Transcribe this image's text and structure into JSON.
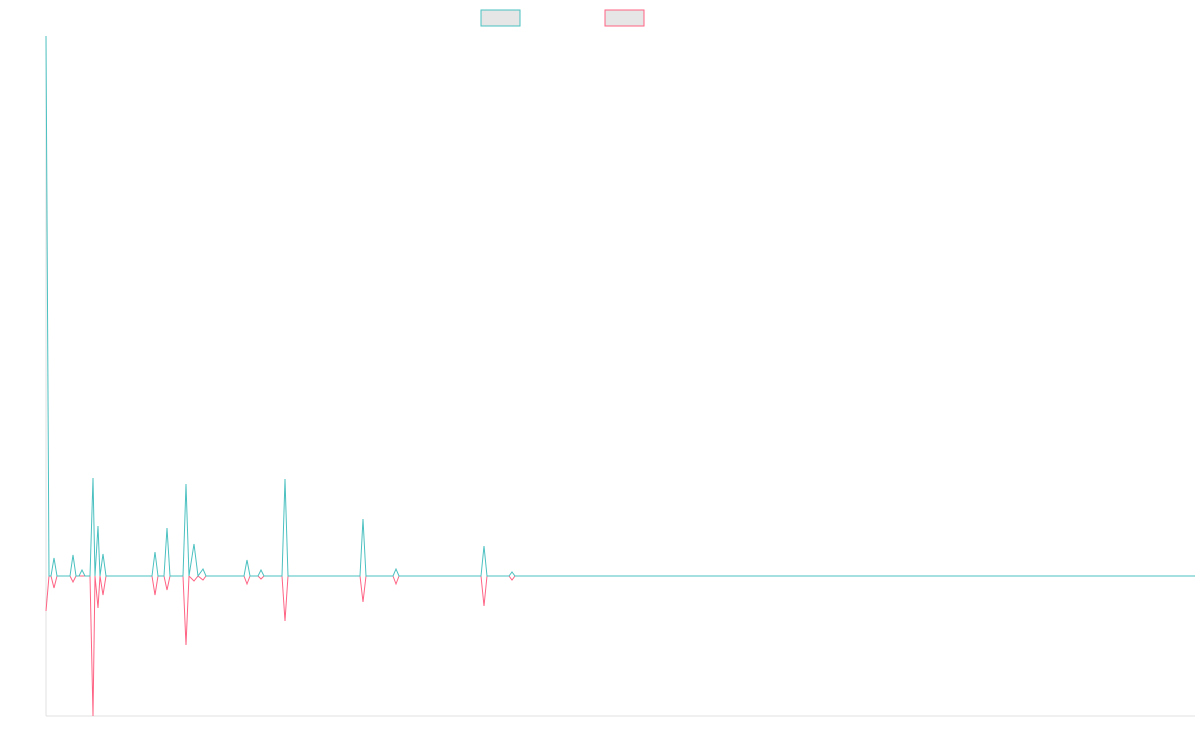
{
  "chart_data": {
    "type": "line",
    "x": [
      0,
      3,
      5,
      8,
      11,
      24,
      27,
      30,
      33,
      36,
      39,
      44,
      47,
      49,
      52,
      54,
      57,
      60,
      106,
      109,
      112,
      118,
      121,
      124,
      137,
      140,
      143,
      148,
      152,
      157,
      160,
      198,
      201,
      204,
      212,
      215,
      218,
      236,
      239,
      242,
      314,
      317,
      320,
      347,
      350,
      353,
      435,
      438,
      441,
      463,
      466,
      469,
      1149
    ],
    "xlim": [
      0,
      1149
    ],
    "ylim": [
      -140,
      540
    ],
    "series": [
      {
        "color": "#ff6384",
        "values": [
          -35,
          0,
          0,
          -12,
          0,
          0,
          -6,
          0,
          0,
          0,
          0,
          0,
          -140,
          0,
          -32,
          0,
          -19,
          0,
          0,
          -19,
          0,
          0,
          -14,
          0,
          0,
          -69,
          0,
          -5,
          0,
          -4,
          0,
          0,
          -8,
          0,
          0,
          -3,
          0,
          0,
          -45,
          0,
          0,
          -26,
          0,
          0,
          -8,
          0,
          0,
          -30,
          0,
          0,
          -4,
          0,
          0
        ]
      },
      {
        "color": "#4bc0c0",
        "values": [
          540,
          0,
          0,
          18,
          0,
          0,
          21,
          0,
          0,
          6,
          0,
          0,
          98,
          0,
          50,
          0,
          22,
          0,
          0,
          24,
          0,
          0,
          48,
          0,
          0,
          92,
          0,
          32,
          0,
          7,
          0,
          0,
          16,
          0,
          0,
          6,
          0,
          0,
          97,
          0,
          0,
          57,
          0,
          0,
          7,
          0,
          0,
          30,
          0,
          0,
          4,
          0,
          0
        ]
      }
    ]
  }
}
